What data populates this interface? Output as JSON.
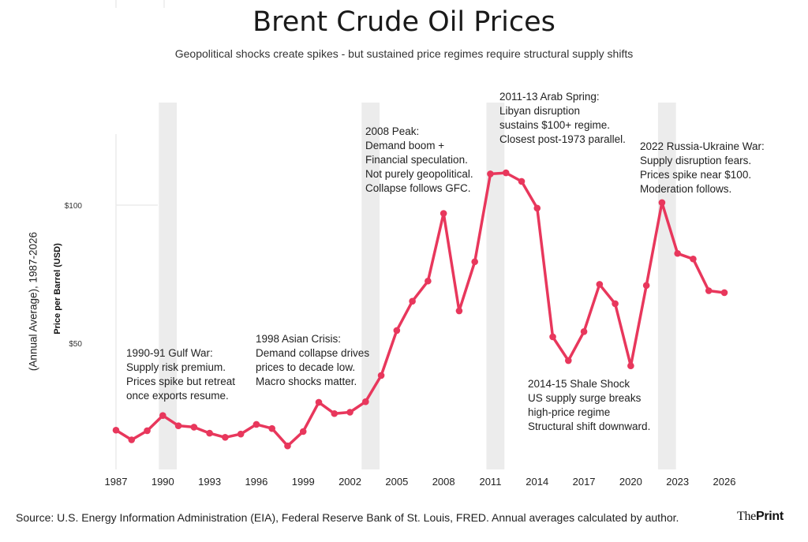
{
  "title": "Brent Crude Oil Prices",
  "subtitle": "Geopolitical shocks create spikes - but sustained price regimes require structural supply shifts",
  "source": "Source: U.S. Energy Information Administration (EIA), Federal Reserve Bank of St. Louis, FRED. Annual averages calculated by author.",
  "brand": {
    "part1": "The",
    "part2": "Print"
  },
  "colors": {
    "line": "#e8375c",
    "shade": "#ececec",
    "grid": "#ebebeb"
  },
  "chart_data": {
    "type": "line",
    "ylabel_outer": "(Annual Average), 1987-2026",
    "ylabel": "Price per Barrel (USD)",
    "xlim": [
      1987,
      2026
    ],
    "ylim": [
      4,
      125
    ],
    "x_ticks": [
      1987,
      1990,
      1993,
      1996,
      1999,
      2002,
      2005,
      2008,
      2011,
      2014,
      2017,
      2020,
      2023,
      2026
    ],
    "y_ticks": [
      {
        "value": 50,
        "label": "$50"
      },
      {
        "value": 100,
        "label": "$100"
      }
    ],
    "series": [
      {
        "x": [
          1987,
          1988,
          1989,
          1990,
          1991,
          1992,
          1993,
          1994,
          1995,
          1996,
          1997,
          1998,
          1999,
          2000,
          2001,
          2002,
          2003,
          2004,
          2005,
          2006,
          2007,
          2008,
          2009,
          2010,
          2011,
          2012,
          2013,
          2014,
          2015,
          2016,
          2017,
          2018,
          2019,
          2020,
          2021,
          2022,
          2023,
          2024,
          2025,
          2026
        ],
        "values": [
          18.5,
          15,
          18.3,
          23.8,
          20.1,
          19.6,
          17.4,
          15.9,
          17.1,
          20.6,
          19.1,
          12.8,
          18,
          28.6,
          24.5,
          25,
          28.8,
          38.3,
          54.6,
          65.2,
          72.5,
          97,
          61.7,
          79.5,
          111.3,
          111.7,
          108.6,
          98.9,
          52.3,
          43.7,
          54.2,
          71.3,
          64.3,
          41.8,
          70.9,
          100.9,
          82.5,
          80.5,
          69,
          68.3
        ]
      }
    ],
    "shaded_periods": [
      [
        1990,
        1991
      ],
      [
        2003,
        2004
      ],
      [
        2011,
        2012
      ],
      [
        2022,
        2023
      ]
    ],
    "annotations": [
      {
        "lines": [
          "1990-91 Gulf War:",
          "Supply risk premium.",
          "Prices spike but retreat",
          "once exports resume."
        ]
      },
      {
        "lines": [
          "1998 Asian Crisis:",
          "Demand collapse drives",
          "prices to decade low.",
          "Macro shocks matter."
        ]
      },
      {
        "lines": [
          "2008 Peak:",
          "Demand boom +",
          "Financial speculation.",
          "Not purely geopolitical.",
          "Collapse follows GFC."
        ]
      },
      {
        "lines": [
          "2011-13 Arab Spring:",
          "Libyan disruption",
          "sustains $100+ regime.",
          "Closest post-1973 parallel."
        ]
      },
      {
        "lines": [
          "2022 Russia-Ukraine War:",
          "Supply disruption fears.",
          "Prices spike near $100.",
          "Moderation follows."
        ]
      },
      {
        "lines": [
          "2014-15 Shale Shock",
          "US supply surge breaks",
          "high-price regime",
          "Structural shift downward."
        ]
      }
    ]
  }
}
